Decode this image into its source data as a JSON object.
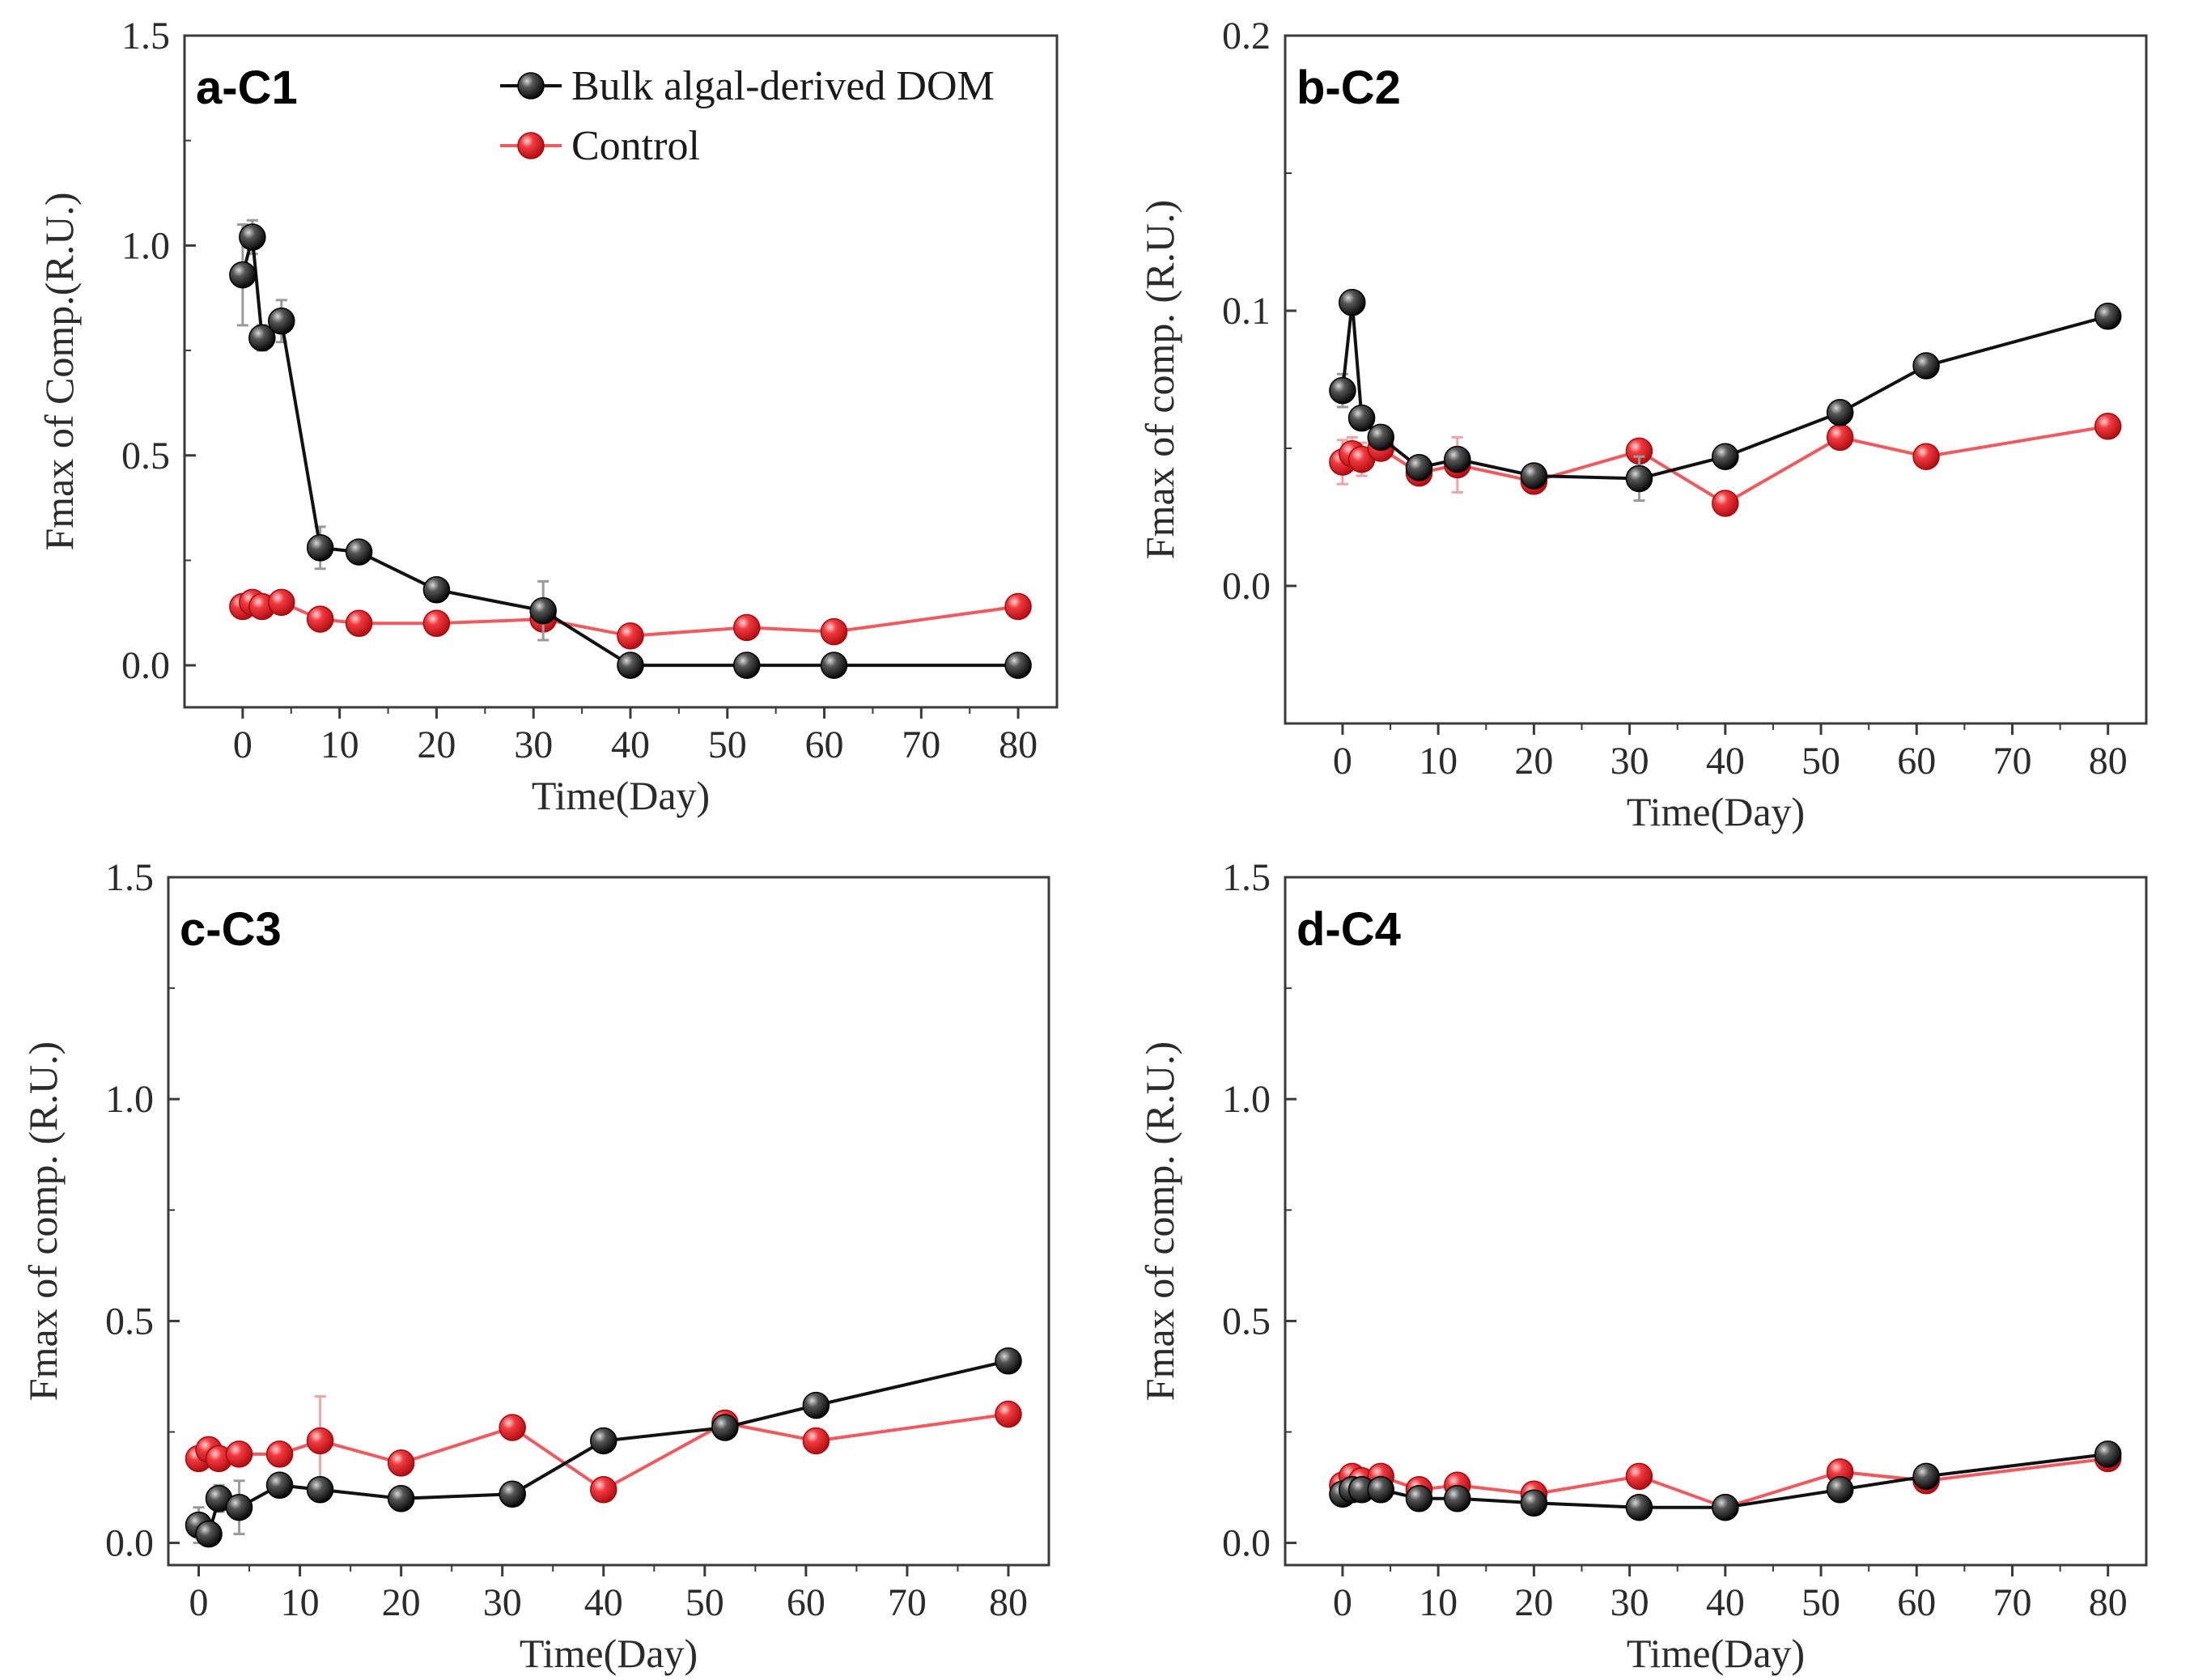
{
  "colors": {
    "bulk": "#111111",
    "control": "#e8191e",
    "control_line": "#ef5a5e",
    "control_err": "#f3a2a4",
    "bulk_err": "#9a9a9a",
    "axis": "#3a3a3a"
  },
  "legend": {
    "bulk_label": "Bulk algal-derived DOM",
    "control_label": "Control"
  },
  "chart_data": [
    {
      "type": "line",
      "panel_label": "a-C1",
      "xlabel": "Time(Day)",
      "ylabel": "Fmax of Comp.(R.U.)",
      "xlim": [
        -6,
        84
      ],
      "ylim": [
        -0.1,
        1.5
      ],
      "xticks": [
        "0",
        "10",
        "20",
        "30",
        "40",
        "50",
        "60",
        "70",
        "80"
      ],
      "yticks": [
        "0.0",
        "0.5",
        "1.0",
        "1.5"
      ],
      "ytick_values": [
        0.0,
        0.5,
        1.0,
        1.5
      ],
      "x": [
        0,
        1,
        2,
        4,
        8,
        12,
        20,
        31,
        40,
        52,
        61,
        80
      ],
      "series": [
        {
          "name": "Bulk algal-derived DOM",
          "values": [
            0.93,
            1.02,
            0.78,
            0.82,
            0.28,
            0.27,
            0.18,
            0.13,
            0.0,
            0.0,
            0.0,
            0.0
          ],
          "errors": [
            0.12,
            0.04,
            0.03,
            0.05,
            0.05,
            0.02,
            0.02,
            0.07,
            0.01,
            0.0,
            0.0,
            0.0
          ]
        },
        {
          "name": "Control",
          "values": [
            0.14,
            0.15,
            0.14,
            0.15,
            0.11,
            0.1,
            0.1,
            0.11,
            0.07,
            0.09,
            0.08,
            0.14
          ],
          "errors": [
            0.01,
            0.01,
            0.01,
            0.01,
            0.01,
            0.01,
            0.01,
            0.01,
            0.01,
            0.01,
            0.01,
            0.01
          ]
        }
      ]
    },
    {
      "type": "line",
      "panel_label": "b-C2",
      "xlabel": "Time(Day)",
      "ylabel": "Fmax of comp. (R.U.)",
      "xlim": [
        -6,
        84
      ],
      "ylim": [
        -0.05,
        0.2
      ],
      "xticks": [
        "0",
        "10",
        "20",
        "30",
        "40",
        "50",
        "60",
        "70",
        "80"
      ],
      "yticks": [
        "0.0",
        "0.1",
        "0.2"
      ],
      "ytick_values": [
        0.0,
        0.1,
        0.2
      ],
      "x": [
        0,
        1,
        2,
        4,
        8,
        12,
        20,
        31,
        40,
        52,
        61,
        80
      ],
      "series": [
        {
          "name": "Bulk algal-derived DOM",
          "values": [
            0.071,
            0.103,
            0.061,
            0.054,
            0.043,
            0.046,
            0.04,
            0.039,
            0.047,
            0.063,
            0.08,
            0.098
          ],
          "errors": [
            0.006,
            0.002,
            0.003,
            0.003,
            0.002,
            0.003,
            0.002,
            0.008,
            0.002,
            0.002,
            0.002,
            0.002
          ]
        },
        {
          "name": "Control",
          "values": [
            0.045,
            0.048,
            0.046,
            0.05,
            0.041,
            0.044,
            0.038,
            0.049,
            0.03,
            0.054,
            0.047,
            0.058
          ],
          "errors": [
            0.008,
            0.006,
            0.006,
            0.004,
            0.003,
            0.01,
            0.002,
            0.003,
            0.003,
            0.003,
            0.002,
            0.002
          ]
        }
      ]
    },
    {
      "type": "line",
      "panel_label": "c-C3",
      "xlabel": "Time(Day)",
      "ylabel": "Fmax of comp. (R.U.)",
      "xlim": [
        -3,
        84
      ],
      "ylim": [
        -0.05,
        1.5
      ],
      "xticks": [
        "0",
        "10",
        "20",
        "30",
        "40",
        "50",
        "60",
        "70",
        "80"
      ],
      "yticks": [
        "0.0",
        "0.5",
        "1.0",
        "1.5"
      ],
      "ytick_values": [
        0.0,
        0.5,
        1.0,
        1.5
      ],
      "x": [
        0,
        1,
        2,
        4,
        8,
        12,
        20,
        31,
        40,
        52,
        61,
        80
      ],
      "series": [
        {
          "name": "Bulk algal-derived DOM",
          "values": [
            0.04,
            0.02,
            0.1,
            0.08,
            0.13,
            0.12,
            0.1,
            0.11,
            0.23,
            0.26,
            0.31,
            0.41
          ],
          "errors": [
            0.04,
            0.02,
            0.03,
            0.06,
            0.02,
            0.02,
            0.01,
            0.01,
            0.02,
            0.01,
            0.01,
            0.01
          ]
        },
        {
          "name": "Control",
          "values": [
            0.19,
            0.21,
            0.19,
            0.2,
            0.2,
            0.23,
            0.18,
            0.26,
            0.12,
            0.27,
            0.23,
            0.29
          ],
          "errors": [
            0.01,
            0.01,
            0.02,
            0.01,
            0.02,
            0.1,
            0.01,
            0.01,
            0.02,
            0.01,
            0.01,
            0.01
          ]
        }
      ]
    },
    {
      "type": "line",
      "panel_label": "d-C4",
      "xlabel": "Time(Day)",
      "ylabel": "Fmax of comp. (R.U.)",
      "xlim": [
        -6,
        84
      ],
      "ylim": [
        -0.05,
        1.5
      ],
      "xticks": [
        "0",
        "10",
        "20",
        "30",
        "40",
        "50",
        "60",
        "70",
        "80"
      ],
      "yticks": [
        "0.0",
        "0.5",
        "1.0",
        "1.5"
      ],
      "ytick_values": [
        0.0,
        0.5,
        1.0,
        1.5
      ],
      "x": [
        0,
        1,
        2,
        4,
        8,
        12,
        20,
        31,
        40,
        52,
        61,
        80
      ],
      "series": [
        {
          "name": "Bulk algal-derived DOM",
          "values": [
            0.11,
            0.12,
            0.12,
            0.12,
            0.1,
            0.1,
            0.09,
            0.08,
            0.08,
            0.12,
            0.15,
            0.2
          ],
          "errors": [
            0.01,
            0.01,
            0.01,
            0.01,
            0.01,
            0.01,
            0.01,
            0.01,
            0.01,
            0.01,
            0.01,
            0.01
          ]
        },
        {
          "name": "Control",
          "values": [
            0.13,
            0.15,
            0.14,
            0.15,
            0.12,
            0.13,
            0.11,
            0.15,
            0.08,
            0.16,
            0.14,
            0.19
          ],
          "errors": [
            0.01,
            0.01,
            0.01,
            0.01,
            0.01,
            0.01,
            0.01,
            0.01,
            0.01,
            0.01,
            0.01,
            0.01
          ]
        }
      ]
    }
  ]
}
